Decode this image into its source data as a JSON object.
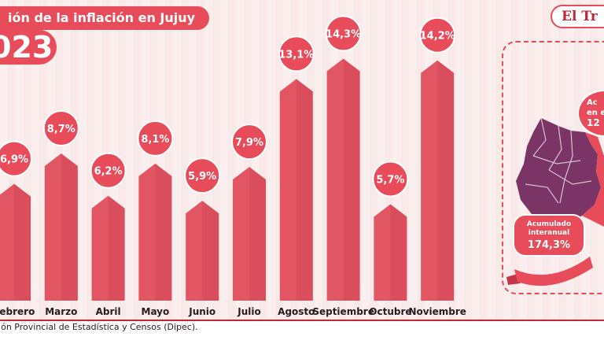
{
  "header": {
    "title": "ión de la inflación en Jujuy",
    "year": "023",
    "brand": "El Tr"
  },
  "footer": {
    "source": "ción Provincial de Estadística y Censos (Dipec)."
  },
  "side_panel": {
    "annotation_line1": "Ac",
    "annotation_line2": "en e",
    "annotation_value": "12",
    "accum_label_line1": "Acumulado",
    "accum_label_line2": "interanual",
    "accum_value": "174,3%"
  },
  "colors": {
    "bar_fill": "#e25563",
    "bar_dark": "#c13747",
    "bubble_fill": "#e84b5a",
    "map_purple": "#7b3466",
    "map_purple_light": "#a14a82",
    "map_red": "#e84b5a"
  },
  "chart_data": {
    "type": "bar",
    "categories": [
      "Febrero",
      "Marzo",
      "Abril",
      "Mayo",
      "Junio",
      "Julio",
      "Agosto",
      "Septiembre",
      "Octubre",
      "Noviembre"
    ],
    "category_labels": [
      "Febrero",
      "Marzo",
      "Abril",
      "Mayo",
      "Junio",
      "Julio",
      "Agosto",
      "Septiembre",
      "Octubre",
      "Noviembre"
    ],
    "values": [
      6.9,
      8.7,
      6.2,
      8.1,
      5.9,
      7.9,
      13.1,
      14.3,
      5.7,
      14.2
    ],
    "value_labels": [
      "6,9%",
      "8,7%",
      "6,2%",
      "8,1%",
      "5,9%",
      "7,9%",
      "13,1%",
      "14,3%",
      "5,7%",
      "14,2%"
    ],
    "ylim": [
      0,
      16
    ],
    "grid": false,
    "legend": "none"
  }
}
